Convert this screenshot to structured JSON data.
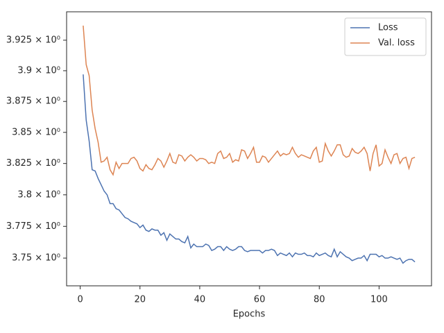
{
  "chart_data": {
    "type": "line",
    "xlabel": "Epochs",
    "x": [
      1,
      2,
      3,
      4,
      5,
      6,
      7,
      8,
      9,
      10,
      11,
      12,
      13,
      14,
      15,
      16,
      17,
      18,
      19,
      20,
      21,
      22,
      23,
      24,
      25,
      26,
      27,
      28,
      29,
      30,
      31,
      32,
      33,
      34,
      35,
      36,
      37,
      38,
      39,
      40,
      41,
      42,
      43,
      44,
      45,
      46,
      47,
      48,
      49,
      50,
      51,
      52,
      53,
      54,
      55,
      56,
      57,
      58,
      59,
      60,
      61,
      62,
      63,
      64,
      65,
      66,
      67,
      68,
      69,
      70,
      71,
      72,
      73,
      74,
      75,
      76,
      77,
      78,
      79,
      80,
      81,
      82,
      83,
      84,
      85,
      86,
      87,
      88,
      89,
      90,
      91,
      92,
      93,
      94,
      95,
      96,
      97,
      98,
      99,
      100,
      101,
      102,
      103,
      104,
      105,
      106,
      107,
      108,
      109,
      110,
      111,
      112
    ],
    "series": [
      {
        "name": "Loss",
        "color": "#4c72b0",
        "values": [
          3.897,
          3.86,
          3.843,
          3.82,
          3.819,
          3.813,
          3.808,
          3.803,
          3.8,
          3.793,
          3.793,
          3.789,
          3.788,
          3.785,
          3.782,
          3.781,
          3.779,
          3.778,
          3.777,
          3.774,
          3.776,
          3.772,
          3.771,
          3.773,
          3.772,
          3.772,
          3.768,
          3.77,
          3.764,
          3.769,
          3.767,
          3.765,
          3.765,
          3.763,
          3.762,
          3.767,
          3.758,
          3.761,
          3.759,
          3.759,
          3.759,
          3.761,
          3.76,
          3.756,
          3.757,
          3.759,
          3.759,
          3.756,
          3.759,
          3.757,
          3.756,
          3.757,
          3.759,
          3.759,
          3.756,
          3.755,
          3.756,
          3.756,
          3.756,
          3.756,
          3.754,
          3.756,
          3.756,
          3.757,
          3.756,
          3.752,
          3.754,
          3.753,
          3.752,
          3.754,
          3.751,
          3.754,
          3.753,
          3.753,
          3.754,
          3.752,
          3.752,
          3.751,
          3.754,
          3.752,
          3.753,
          3.754,
          3.752,
          3.751,
          3.757,
          3.751,
          3.755,
          3.753,
          3.751,
          3.75,
          3.748,
          3.749,
          3.75,
          3.75,
          3.752,
          3.748,
          3.753,
          3.753,
          3.753,
          3.751,
          3.752,
          3.75,
          3.75,
          3.751,
          3.75,
          3.749,
          3.75,
          3.746,
          3.748,
          3.749,
          3.749,
          3.747
        ]
      },
      {
        "name": "Val. loss",
        "color": "#dd8452",
        "values": [
          3.937,
          3.905,
          3.896,
          3.868,
          3.853,
          3.842,
          3.826,
          3.827,
          3.83,
          3.82,
          3.816,
          3.826,
          3.821,
          3.825,
          3.825,
          3.825,
          3.829,
          3.83,
          3.827,
          3.821,
          3.819,
          3.824,
          3.821,
          3.82,
          3.824,
          3.829,
          3.827,
          3.822,
          3.827,
          3.833,
          3.826,
          3.825,
          3.832,
          3.831,
          3.827,
          3.83,
          3.832,
          3.83,
          3.827,
          3.829,
          3.829,
          3.828,
          3.825,
          3.826,
          3.825,
          3.833,
          3.835,
          3.829,
          3.83,
          3.833,
          3.826,
          3.828,
          3.827,
          3.836,
          3.835,
          3.829,
          3.833,
          3.838,
          3.826,
          3.826,
          3.831,
          3.83,
          3.826,
          3.829,
          3.832,
          3.835,
          3.831,
          3.833,
          3.832,
          3.833,
          3.838,
          3.833,
          3.83,
          3.832,
          3.831,
          3.83,
          3.829,
          3.835,
          3.838,
          3.826,
          3.827,
          3.841,
          3.835,
          3.831,
          3.835,
          3.84,
          3.84,
          3.832,
          3.83,
          3.831,
          3.837,
          3.834,
          3.833,
          3.835,
          3.838,
          3.833,
          3.819,
          3.833,
          3.84,
          3.823,
          3.825,
          3.836,
          3.83,
          3.825,
          3.832,
          3.833,
          3.825,
          3.829,
          3.83,
          3.821,
          3.829,
          3.83
        ]
      }
    ],
    "xlim": [
      -4.55,
      117.55
    ],
    "xticks": [
      0,
      20,
      40,
      60,
      80,
      100
    ],
    "ylim": [
      3.7283,
      3.9484
    ],
    "log_scale": true,
    "yticks": [
      {
        "value": 3.75,
        "label": "3.75 × 10⁰"
      },
      {
        "value": 3.775,
        "label": "3.775 × 10⁰"
      },
      {
        "value": 3.8,
        "label": "3.8 × 10⁰"
      },
      {
        "value": 3.825,
        "label": "3.825 × 10⁰"
      },
      {
        "value": 3.85,
        "label": "3.85 × 10⁰"
      },
      {
        "value": 3.875,
        "label": "3.875 × 10⁰"
      },
      {
        "value": 3.9,
        "label": "3.9 × 10⁰"
      },
      {
        "value": 3.925,
        "label": "3.925 × 10⁰"
      }
    ],
    "legend": "upper right",
    "grid": false
  }
}
